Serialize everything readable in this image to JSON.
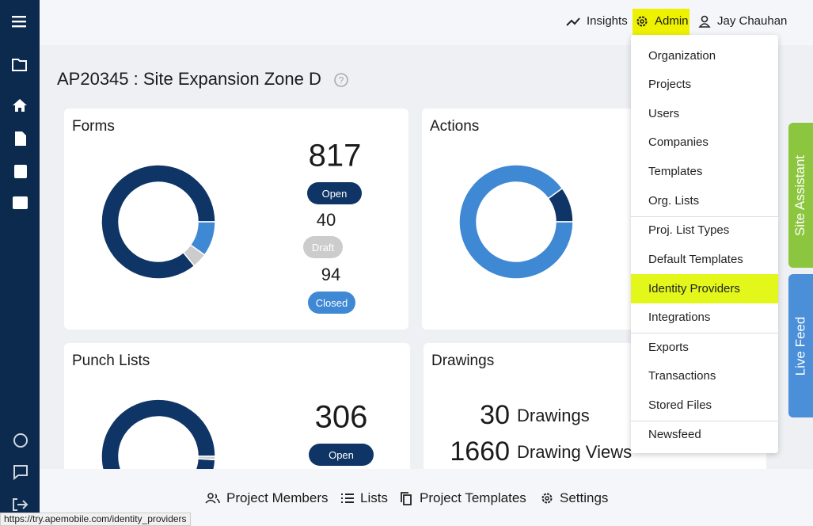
{
  "topbar": {
    "links": [
      "Insights",
      "Admin",
      "Jay Chauhan"
    ]
  },
  "page": {
    "title": "AP20345 : Site Expansion Zone D"
  },
  "forms": {
    "title": "Forms",
    "stats": [
      {
        "value": 817,
        "label": "Open",
        "color": "#0f3566"
      },
      {
        "value": 40,
        "label": "Draft",
        "color": "#cccccc"
      },
      {
        "value": 94,
        "label": "Closed",
        "color": "#3f88d4"
      }
    ]
  },
  "actions": {
    "title": "Actions",
    "segments": [
      {
        "value": 10,
        "color": "#0f3566"
      },
      {
        "value": 90,
        "color": "#3f88d4"
      }
    ]
  },
  "punch_lists": {
    "title": "Punch Lists",
    "stats": [
      {
        "value": 306,
        "label": "Open",
        "color": "#0f3566"
      }
    ],
    "more_segments": [
      {
        "value": 3,
        "color": "#cccccc"
      }
    ]
  },
  "drawings": {
    "title": "Drawings",
    "rows": [
      {
        "value": 30,
        "label": "Drawings"
      },
      {
        "value": 1660,
        "label": "Drawing Views"
      }
    ]
  },
  "admin_menu": {
    "groups": [
      [
        "Organization",
        "Projects",
        "Users",
        "Companies",
        "Templates",
        "Org. Lists"
      ],
      [
        "Proj. List Types",
        "Default Templates",
        "Identity Providers",
        "Integrations"
      ],
      [
        "Exports",
        "Transactions",
        "Stored Files"
      ],
      [
        "Newsfeed"
      ]
    ],
    "selected": "Identity Providers"
  },
  "side_tabs": [
    "Site Assistant",
    "Live Feed"
  ],
  "bottom_bar": [
    "Project Members",
    "Lists",
    "Project Templates",
    "Settings"
  ],
  "status_url": "https://try.apemobile.com/identity_providers"
}
